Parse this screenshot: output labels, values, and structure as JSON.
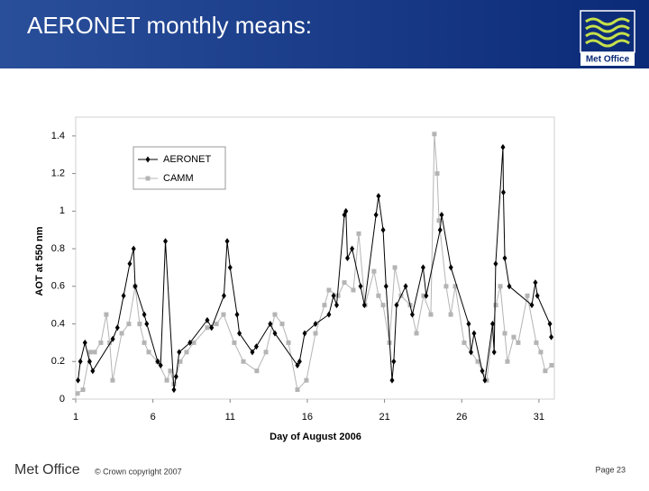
{
  "slide": {
    "title": "AERONET monthly means:",
    "logo": "Met Office",
    "footer": "Met Office",
    "copyright": "© Crown copyright 2007",
    "page": "Page 23"
  },
  "chart_data": {
    "type": "line",
    "xlabel": "Day of August 2006",
    "ylabel": "AOT at 550 nm",
    "xlim": [
      1,
      32
    ],
    "xticks": [
      1,
      6,
      11,
      16,
      21,
      26,
      31
    ],
    "ylim": [
      0,
      1.5
    ],
    "yticks": [
      0,
      0.2,
      0.4,
      0.6,
      0.8,
      1,
      1.2,
      1.4
    ],
    "legend": "upper left",
    "series": [
      {
        "name": "AERONET",
        "color": "#000000",
        "marker": "diamond",
        "x": [
          1.15,
          1.3,
          1.6,
          1.9,
          2.1,
          3.4,
          3.7,
          4.1,
          4.5,
          4.75,
          4.85,
          5.44,
          5.6,
          6.31,
          6.5,
          6.81,
          7.36,
          7.5,
          7.7,
          8.4,
          9.52,
          9.8,
          10.6,
          10.81,
          11.0,
          11.45,
          11.6,
          12.44,
          12.7,
          13.6,
          13.9,
          15.36,
          15.5,
          15.83,
          16.53,
          17.4,
          17.7,
          17.9,
          18.4,
          18.5,
          18.6,
          18.9,
          19.45,
          19.7,
          20.45,
          20.61,
          20.91,
          21.1,
          21.49,
          21.6,
          21.78,
          22.37,
          22.8,
          23.5,
          23.7,
          24.6,
          24.7,
          25.3,
          26.45,
          26.6,
          26.8,
          27.33,
          27.5,
          28.0,
          28.1,
          28.2,
          28.67,
          28.7,
          28.79,
          29.08,
          30.54,
          30.77,
          30.9,
          31.71,
          31.8
        ],
        "values": [
          0.1,
          0.2,
          0.3,
          0.2,
          0.15,
          0.32,
          0.38,
          0.55,
          0.72,
          0.8,
          0.6,
          0.45,
          0.4,
          0.2,
          0.18,
          0.84,
          0.05,
          0.12,
          0.25,
          0.3,
          0.42,
          0.38,
          0.55,
          0.84,
          0.7,
          0.45,
          0.35,
          0.25,
          0.28,
          0.4,
          0.35,
          0.18,
          0.2,
          0.35,
          0.4,
          0.45,
          0.55,
          0.5,
          0.98,
          1.0,
          0.75,
          0.8,
          0.6,
          0.5,
          0.98,
          1.08,
          0.9,
          0.6,
          0.1,
          0.2,
          0.5,
          0.6,
          0.45,
          0.7,
          0.55,
          0.9,
          0.98,
          0.7,
          0.4,
          0.25,
          0.35,
          0.15,
          0.1,
          0.4,
          0.25,
          0.72,
          1.34,
          1.1,
          0.75,
          0.6,
          0.5,
          0.62,
          0.55,
          0.4,
          0.33
        ]
      },
      {
        "name": "CAMM",
        "color": "#b4b4b4",
        "marker": "square",
        "x": [
          1.12,
          1.47,
          1.93,
          2.23,
          2.63,
          2.98,
          3.2,
          3.39,
          3.98,
          4.44,
          4.85,
          5.14,
          5.44,
          5.73,
          6.31,
          6.9,
          7.13,
          7.36,
          7.77,
          8.18,
          8.65,
          9.52,
          10.11,
          10.57,
          11.27,
          11.86,
          12.73,
          13.32,
          13.9,
          14.37,
          14.78,
          15.36,
          15.94,
          16.53,
          17.11,
          17.4,
          17.99,
          18.4,
          18.98,
          19.33,
          19.74,
          20.32,
          20.61,
          20.91,
          21.32,
          21.67,
          22.07,
          22.66,
          23.07,
          23.53,
          24.0,
          24.23,
          24.41,
          24.53,
          24.99,
          25.29,
          25.58,
          26.16,
          27.04,
          27.62,
          28.21,
          28.5,
          28.79,
          28.96,
          29.37,
          29.66,
          30.25,
          30.83,
          31.12,
          31.41,
          31.82
        ],
        "values": [
          0.03,
          0.05,
          0.25,
          0.25,
          0.3,
          0.45,
          0.3,
          0.1,
          0.35,
          0.4,
          0.6,
          0.4,
          0.3,
          0.25,
          0.2,
          0.1,
          0.15,
          0.08,
          0.2,
          0.25,
          0.3,
          0.38,
          0.4,
          0.45,
          0.3,
          0.2,
          0.15,
          0.25,
          0.45,
          0.4,
          0.3,
          0.05,
          0.1,
          0.35,
          0.5,
          0.58,
          0.55,
          0.62,
          0.58,
          0.88,
          0.5,
          0.68,
          0.55,
          0.5,
          0.3,
          0.7,
          0.55,
          0.5,
          0.35,
          0.55,
          0.45,
          1.41,
          1.2,
          0.95,
          0.6,
          0.45,
          0.6,
          0.3,
          0.2,
          0.1,
          0.5,
          0.6,
          0.35,
          0.2,
          0.33,
          0.3,
          0.55,
          0.3,
          0.25,
          0.15,
          0.18
        ]
      }
    ]
  }
}
